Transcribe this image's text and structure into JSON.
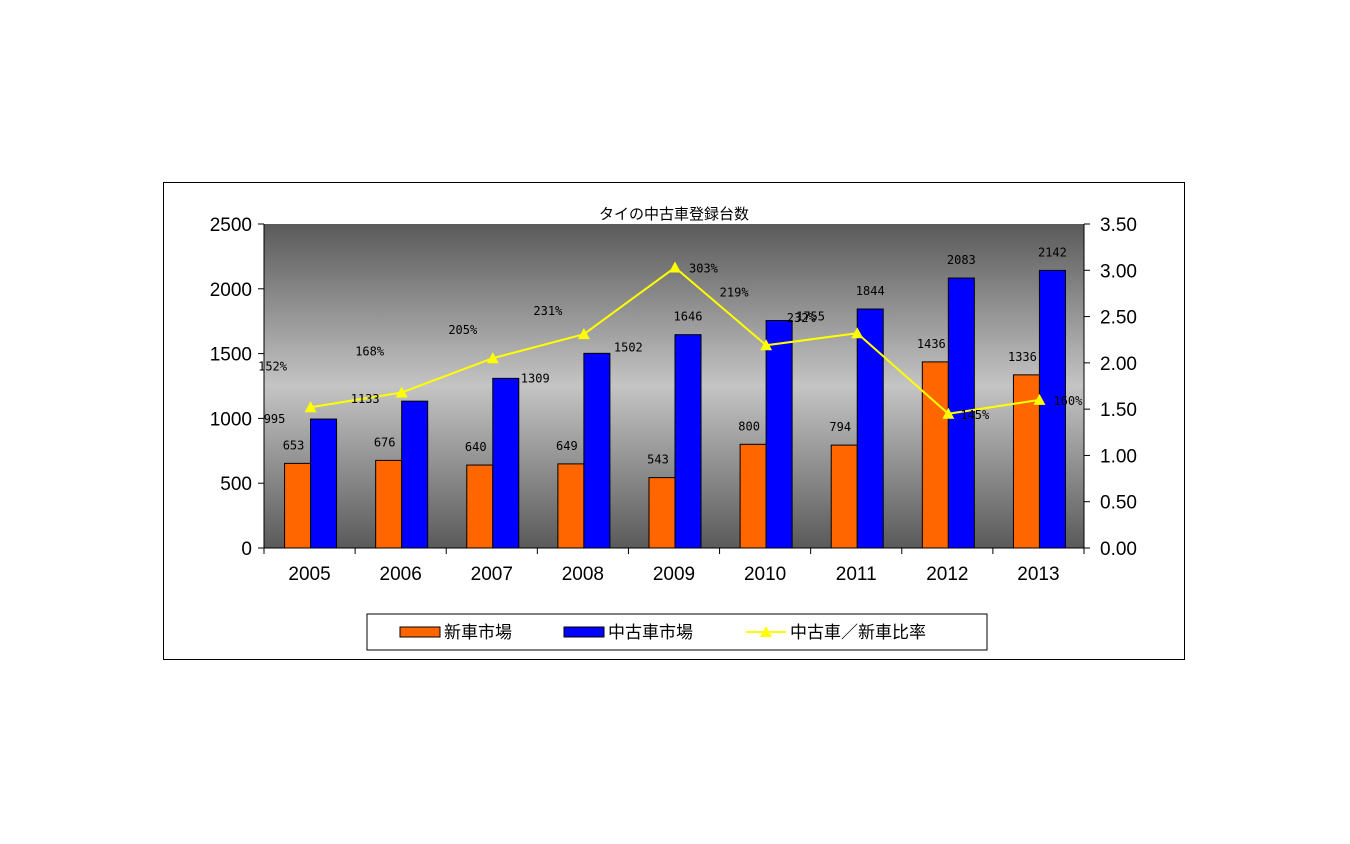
{
  "chart_data": {
    "type": "bar",
    "title": "タイの中古車登録台数",
    "categories": [
      "2005",
      "2006",
      "2007",
      "2008",
      "2009",
      "2010",
      "2011",
      "2012",
      "2013"
    ],
    "series": [
      {
        "name": "新車市場",
        "kind": "bar",
        "color": "#ff6600",
        "values": [
          653,
          676,
          640,
          649,
          543,
          800,
          794,
          1436,
          1336
        ],
        "labels": [
          "653",
          "676",
          "640",
          "649",
          "543",
          "800",
          "794",
          "1436",
          "1336"
        ]
      },
      {
        "name": "中古車市場",
        "kind": "bar",
        "color": "#0000ff",
        "values": [
          995,
          1133,
          1309,
          1502,
          1646,
          1755,
          1844,
          2083,
          2142
        ],
        "labels": [
          "995",
          "1133",
          "1309",
          "1502",
          "1646",
          "1755",
          "1844",
          "2083",
          "2142"
        ]
      },
      {
        "name": "中古車／新車比率",
        "kind": "line",
        "axis": "right",
        "color": "#ffff00",
        "values": [
          1.52,
          1.68,
          2.05,
          2.31,
          3.03,
          2.19,
          2.32,
          1.45,
          1.6
        ],
        "labels": [
          "152%",
          "168%",
          "205%",
          "231%",
          "303%",
          "219%",
          "232%",
          "145%",
          "160%"
        ]
      }
    ],
    "ylim": [
      0,
      2500
    ],
    "yticks": [
      "0",
      "500",
      "1000",
      "1500",
      "2000",
      "2500"
    ],
    "y2lim": [
      0,
      3.5
    ],
    "y2ticks": [
      "0.00",
      "0.50",
      "1.00",
      "1.50",
      "2.00",
      "2.50",
      "3.00",
      "3.50"
    ],
    "legend_position": "bottom",
    "grid": false
  }
}
